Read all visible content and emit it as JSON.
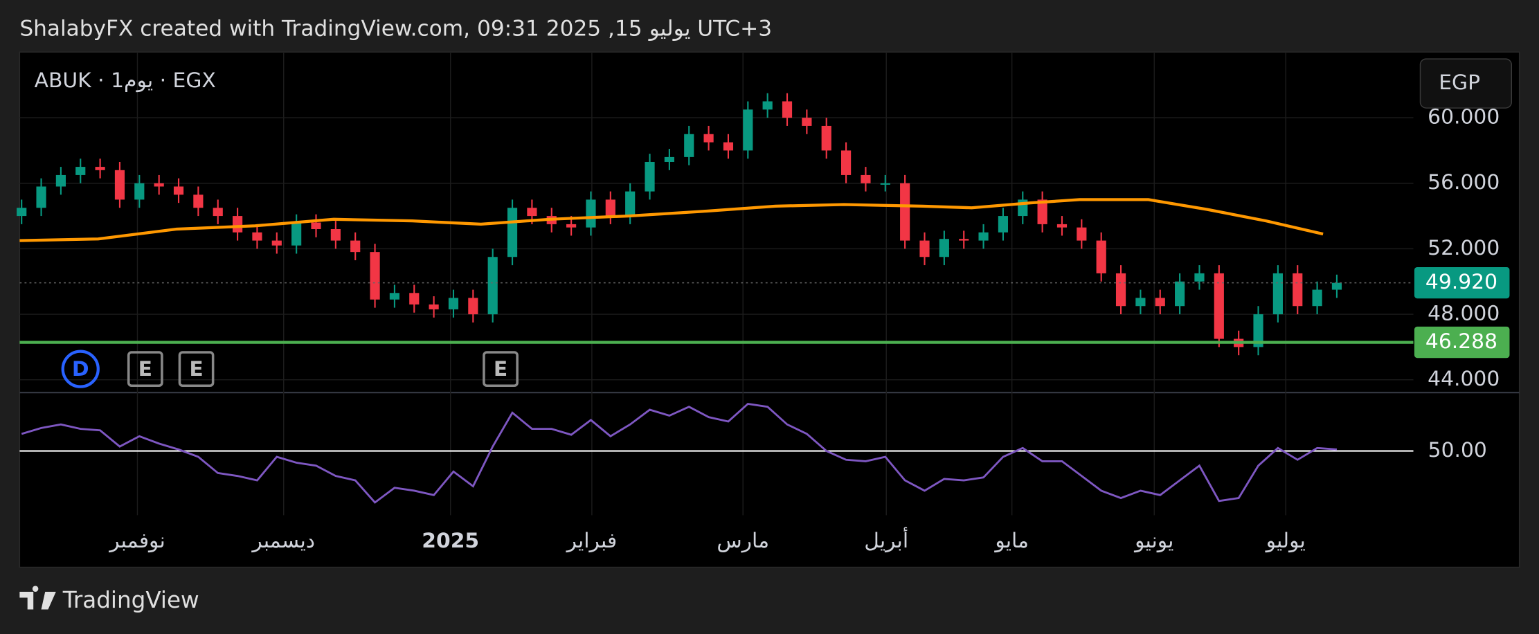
{
  "header": {
    "text": "ShalabyFX created with TradingView.com, 09:31 2025 ,15 يوليو UTC+3"
  },
  "footer": {
    "brand": "TradingView"
  },
  "chart_data": {
    "type": "candlestick",
    "title": "ABUK · 1يوم · EGX",
    "currency": "EGP",
    "up_color": "#089981",
    "down_color": "#f23645",
    "grid": true,
    "open": [
      54,
      54.5,
      55.8,
      56.5,
      57,
      56.8,
      55,
      56,
      55.8,
      55.3,
      54.5,
      54,
      53,
      52.5,
      52.2,
      53.6,
      53.2,
      52.5,
      51.8,
      48.9,
      49.3,
      48.6,
      48.3,
      49,
      48,
      51.5,
      54.5,
      54,
      53.5,
      53.3,
      55,
      54,
      55.5,
      57.3,
      57.6,
      59,
      58.5,
      58,
      60.5,
      61,
      60,
      59.5,
      58,
      56.5,
      56,
      56,
      52.5,
      51.5,
      52.6,
      52.5,
      53,
      54,
      55,
      53.5,
      53.3,
      52.5,
      50.5,
      48.5,
      49,
      48.5,
      50,
      50.5,
      46.5,
      46,
      48,
      50.5,
      48.5,
      49.5
    ],
    "high": [
      55,
      56.3,
      57,
      57.5,
      57.5,
      57.3,
      56.5,
      56.5,
      56.3,
      55.8,
      55,
      54.5,
      53.5,
      53,
      54.1,
      54.1,
      53.7,
      53,
      52.3,
      49.8,
      49.8,
      49.1,
      49.5,
      49.5,
      52,
      55,
      55,
      54.5,
      54,
      55.5,
      55.5,
      56,
      57.8,
      58.1,
      59.5,
      59.5,
      59,
      61,
      61.5,
      61.5,
      60.5,
      60,
      58.5,
      57,
      56.5,
      56.5,
      53,
      53.1,
      53.1,
      53.5,
      54.5,
      55.5,
      55.5,
      54,
      53.8,
      53,
      51,
      49.5,
      49.5,
      50.5,
      51,
      51,
      47,
      48.5,
      51,
      51,
      50,
      50.42
    ],
    "low": [
      53.5,
      54,
      55.3,
      56,
      56.3,
      54.5,
      54.5,
      55.3,
      54.8,
      54,
      53.5,
      52.5,
      52,
      51.7,
      51.7,
      52.7,
      52,
      51.3,
      48.4,
      48.4,
      48.1,
      47.8,
      47.8,
      47.5,
      47.5,
      51,
      53.5,
      53,
      52.8,
      52.8,
      53.5,
      53.5,
      55,
      56.8,
      57.1,
      58,
      57.5,
      57.5,
      60,
      59.5,
      59,
      57.5,
      56,
      55.5,
      55.5,
      52,
      51,
      51,
      52,
      52,
      52.5,
      53.5,
      53,
      52.8,
      52,
      50,
      48,
      48,
      48,
      48,
      49.5,
      46,
      45.5,
      45.5,
      47.5,
      48,
      48,
      49
    ],
    "close": [
      54.5,
      55.8,
      56.5,
      57,
      56.8,
      55,
      56,
      55.8,
      55.3,
      54.5,
      54,
      53,
      52.5,
      52.2,
      53.6,
      53.2,
      52.5,
      51.8,
      48.9,
      49.3,
      48.6,
      48.3,
      49,
      48,
      51.5,
      54.5,
      54,
      53.5,
      53.3,
      55,
      54,
      55.5,
      57.3,
      57.6,
      59,
      58.5,
      58,
      60.5,
      61,
      60,
      59.5,
      58,
      56.5,
      56,
      56,
      52.5,
      51.5,
      52.6,
      52.5,
      53,
      54,
      55,
      53.5,
      53.3,
      52.5,
      50.5,
      48.5,
      49,
      48.5,
      50,
      50.5,
      46.5,
      46,
      48,
      50.5,
      48.5,
      49.5,
      49.92
    ],
    "ylim": [
      43.22,
      64.01
    ],
    "yticks": [
      {
        "value": 44,
        "label": "44.000"
      },
      {
        "value": 48,
        "label": "48.000"
      },
      {
        "value": 52,
        "label": "52.000"
      },
      {
        "value": 56,
        "label": "56.000"
      },
      {
        "value": 60,
        "label": "60.000"
      }
    ],
    "xlim": [
      -0.1,
      70.9
    ],
    "xticks": [
      {
        "value": 5.9,
        "label": "نوفمبر"
      },
      {
        "value": 13.35,
        "label": "ديسمبر"
      },
      {
        "value": 21.85,
        "label": "2025"
      },
      {
        "value": 29.05,
        "label": "فبراير"
      },
      {
        "value": 36.75,
        "label": "مارس"
      },
      {
        "value": 44.05,
        "label": "أبريل"
      },
      {
        "value": 50.45,
        "label": "مايو"
      },
      {
        "value": 57.7,
        "label": "يونيو"
      },
      {
        "value": 64.4,
        "label": "يوليو"
      }
    ],
    "ma": {
      "color": "#ff9800",
      "x": [
        -0.1,
        3.9,
        7.9,
        11.9,
        15.9,
        19.9,
        23.4,
        26.9,
        30.9,
        34.9,
        38.4,
        41.9,
        45.9,
        48.4,
        51.4,
        53.9,
        57.4,
        60.4,
        63.4,
        66.3
      ],
      "values": [
        52.5,
        52.6,
        53.2,
        53.4,
        53.8,
        53.7,
        53.5,
        53.8,
        54,
        54.3,
        54.6,
        54.7,
        54.6,
        54.5,
        54.8,
        55,
        55,
        54.4,
        53.7,
        52.9
      ]
    },
    "last": {
      "value": 49.92,
      "label": "49.920",
      "color": "#089981"
    },
    "lines": [
      {
        "value": 46.288,
        "label": "46.288",
        "color": "#4caf50"
      }
    ],
    "events": [
      {
        "x": 3,
        "label": "D"
      },
      {
        "x": 6.3,
        "label": "E"
      },
      {
        "x": 8.9,
        "label": "E"
      },
      {
        "x": 24.4,
        "label": "E"
      }
    ],
    "rsi": {
      "color": "#7e57c2",
      "values": [
        55.8,
        57.8,
        59,
        57.5,
        57,
        51.5,
        55,
        52.5,
        50.5,
        48,
        42.5,
        41.5,
        40,
        48,
        46,
        45,
        41.5,
        40,
        32.5,
        37.5,
        36.5,
        35,
        43,
        38,
        51.5,
        63,
        57.5,
        57.5,
        55.5,
        60.5,
        55,
        59,
        64,
        62,
        65,
        61.5,
        60,
        66,
        65,
        59,
        55.8,
        50,
        47,
        46.5,
        48,
        40,
        36.5,
        40.5,
        40,
        41,
        48,
        51,
        46.5,
        46.5,
        41.5,
        36.5,
        34,
        36.5,
        35,
        40,
        45,
        33,
        34,
        45,
        51,
        47,
        51,
        50.5
      ],
      "ylim": [
        29.5,
        70.5
      ],
      "yticks": [
        {
          "value": 50,
          "label": "50.00"
        }
      ]
    }
  }
}
